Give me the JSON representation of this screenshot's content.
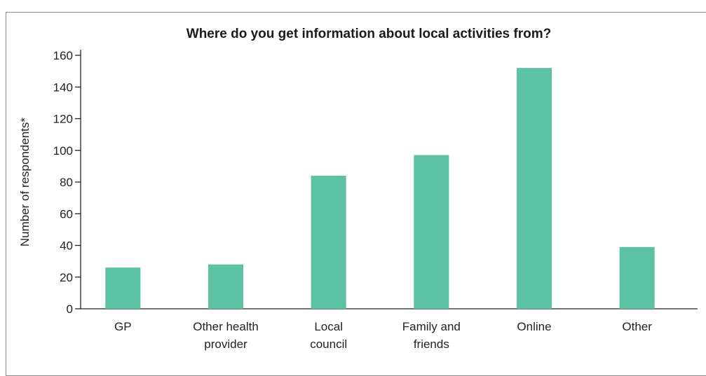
{
  "chart_data": {
    "type": "bar",
    "title": "Where do you get information about local activities from?",
    "xlabel": "",
    "ylabel": "Number of respondents*",
    "categories": [
      [
        "GP"
      ],
      [
        "Other health",
        "provider"
      ],
      [
        "Local",
        "council"
      ],
      [
        "Family and",
        "friends"
      ],
      [
        "Online"
      ],
      [
        "Other"
      ]
    ],
    "values": [
      26,
      28,
      84,
      97,
      152,
      39
    ],
    "ylim": [
      0,
      160
    ],
    "yticks": [
      0,
      20,
      40,
      60,
      80,
      100,
      120,
      140,
      160
    ],
    "bar_color": "#5cc2a4",
    "grid": false,
    "legend": "none"
  }
}
